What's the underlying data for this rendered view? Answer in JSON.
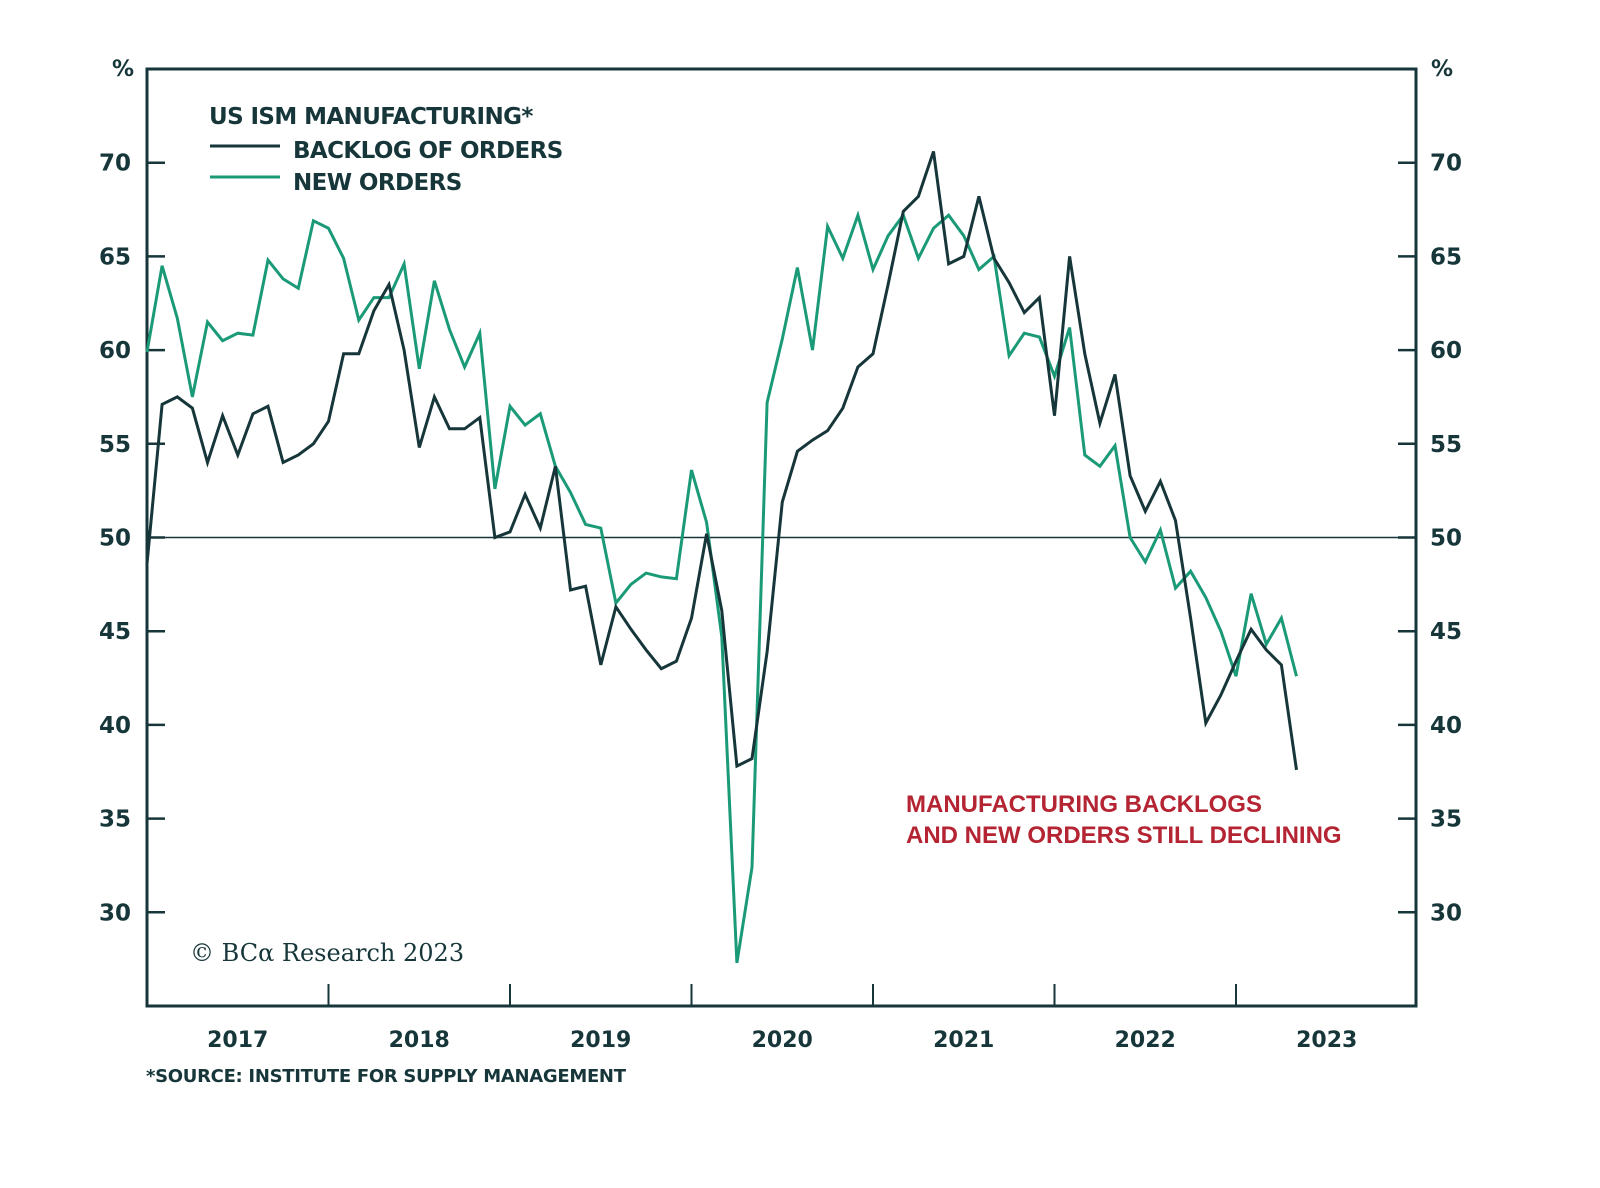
{
  "chart_data": {
    "type": "line",
    "title": "US ISM MANUFACTURING*",
    "xlabel": "",
    "ylabel": "%",
    "ylabel_right": "%",
    "ylim": [
      25,
      75
    ],
    "yticks": [
      30,
      35,
      40,
      45,
      50,
      55,
      60,
      65,
      70
    ],
    "reference_line": 50,
    "x_start": "2017-01",
    "x_frequency": "monthly",
    "year_labels": [
      "2017",
      "2018",
      "2019",
      "2020",
      "2021",
      "2022",
      "2023"
    ],
    "grid": false,
    "legend_position": "top-left",
    "series": [
      {
        "name": "BACKLOG OF ORDERS",
        "color": "#16363a",
        "values": [
          48.6,
          57.1,
          57.5,
          56.9,
          54.0,
          56.5,
          54.4,
          56.6,
          57.0,
          54.0,
          54.4,
          55.0,
          56.2,
          59.8,
          59.8,
          62.1,
          63.5,
          60.0,
          54.8,
          57.5,
          55.8,
          55.8,
          56.4,
          50.0,
          50.3,
          52.3,
          50.5,
          53.8,
          47.2,
          47.4,
          43.2,
          46.3,
          45.1,
          44.0,
          43.0,
          43.4,
          45.7,
          50.2,
          46.1,
          37.8,
          38.2,
          43.9,
          51.9,
          54.6,
          55.2,
          55.7,
          56.9,
          59.1,
          59.8,
          63.5,
          67.4,
          68.2,
          70.6,
          64.6,
          65.0,
          68.2,
          64.9,
          63.6,
          62.0,
          62.8,
          56.5,
          65.0,
          59.8,
          56.1,
          58.7,
          53.3,
          51.4,
          53.0,
          50.9,
          45.7,
          40.1,
          41.6,
          43.4,
          45.1,
          44.0,
          43.2,
          37.6
        ]
      },
      {
        "name": "NEW ORDERS",
        "color": "#1b9a78",
        "values": [
          59.9,
          64.5,
          61.7,
          57.5,
          61.5,
          60.5,
          60.9,
          60.8,
          64.8,
          63.8,
          63.3,
          66.9,
          66.5,
          64.9,
          61.6,
          62.8,
          62.8,
          64.6,
          59.0,
          63.7,
          61.1,
          59.1,
          60.9,
          52.6,
          57.0,
          56.0,
          56.6,
          53.8,
          52.4,
          50.7,
          50.5,
          46.5,
          47.5,
          48.1,
          47.9,
          47.8,
          53.6,
          50.8,
          44.7,
          27.3,
          32.4,
          57.2,
          60.6,
          64.4,
          60.0,
          66.6,
          64.9,
          67.2,
          64.3,
          66.1,
          67.2,
          64.9,
          66.5,
          67.2,
          66.1,
          64.3,
          65.0,
          59.7,
          60.9,
          60.7,
          58.6,
          61.2,
          54.4,
          53.8,
          54.9,
          50.0,
          48.7,
          50.4,
          47.3,
          48.2,
          46.8,
          45.0,
          42.6,
          47.0,
          44.3,
          45.7,
          42.6
        ]
      }
    ],
    "annotation": [
      "MANUFACTURING BACKLOGS",
      "AND NEW ORDERS STILL DECLINING"
    ],
    "credit": "© BCα Research 2023",
    "source": "*SOURCE: INSTITUTE FOR SUPPLY MANAGEMENT"
  }
}
